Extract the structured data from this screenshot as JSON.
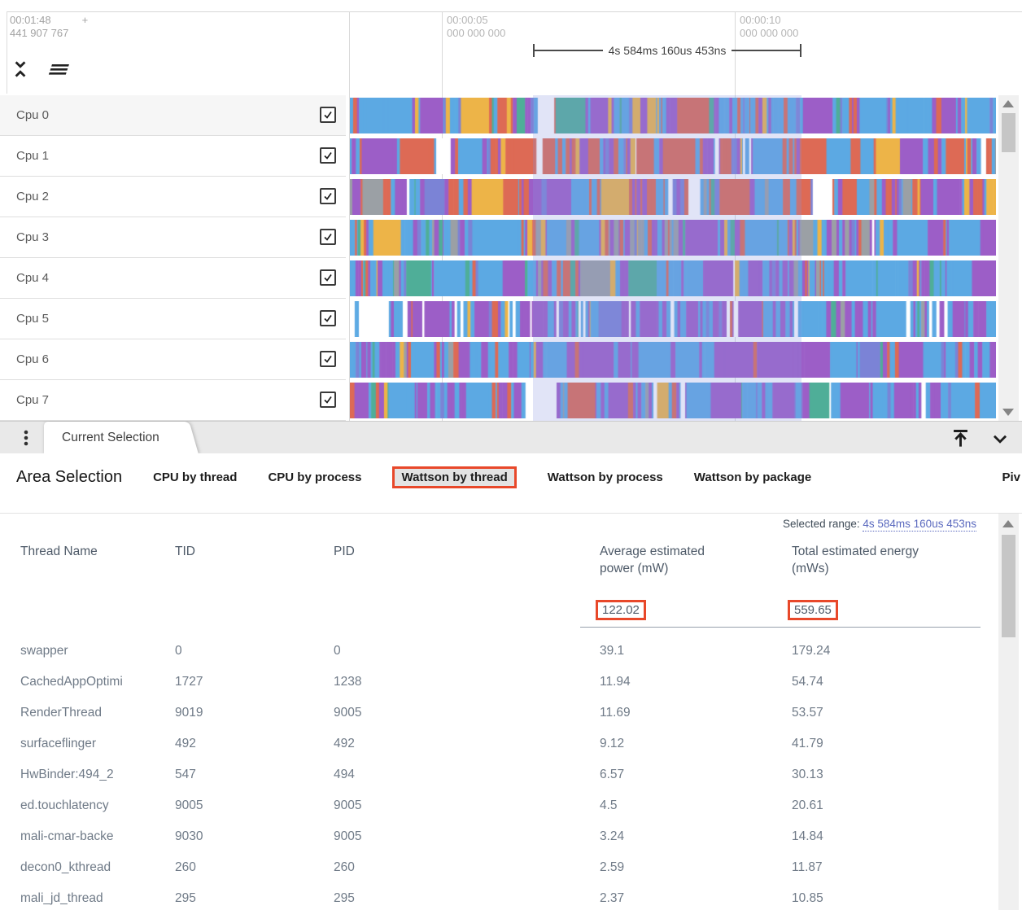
{
  "timeline": {
    "cursor": {
      "time": "00:01:48",
      "plus": "+",
      "nanos": "441 907 767"
    },
    "ticks": [
      {
        "time": "00:00:05",
        "nanos": "000 000 000"
      },
      {
        "time": "00:00:10",
        "nanos": "000 000 000"
      }
    ],
    "measurement": {
      "label": "4s 584ms 160us 453ns"
    },
    "tracks": [
      {
        "label": "Cpu 0",
        "checked": true,
        "seed": 101,
        "weights": [
          0.42,
          0.2,
          0.08,
          0.12,
          0.06,
          0.04,
          0.06,
          0.02
        ]
      },
      {
        "label": "Cpu 1",
        "checked": true,
        "seed": 202,
        "weights": [
          0.34,
          0.22,
          0.28,
          0.04,
          0.02,
          0.02,
          0.04,
          0.04
        ]
      },
      {
        "label": "Cpu 2",
        "checked": true,
        "seed": 303,
        "weights": [
          0.3,
          0.24,
          0.3,
          0.05,
          0.03,
          0.03,
          0.04,
          0.01
        ]
      },
      {
        "label": "Cpu 3",
        "checked": true,
        "seed": 404,
        "weights": [
          0.38,
          0.24,
          0.12,
          0.04,
          0.05,
          0.12,
          0.04,
          0.01
        ]
      },
      {
        "label": "Cpu 4",
        "checked": true,
        "seed": 505,
        "weights": [
          0.48,
          0.26,
          0.1,
          0.04,
          0.05,
          0.02,
          0.04,
          0.01
        ]
      },
      {
        "label": "Cpu 5",
        "checked": true,
        "seed": 606,
        "weights": [
          0.34,
          0.36,
          0.05,
          0.05,
          0.02,
          0.02,
          0.04,
          0.12
        ]
      },
      {
        "label": "Cpu 6",
        "checked": true,
        "seed": 707,
        "weights": [
          0.42,
          0.36,
          0.1,
          0.03,
          0.03,
          0.02,
          0.03,
          0.01
        ]
      },
      {
        "label": "Cpu 7",
        "checked": true,
        "seed": 808,
        "weights": [
          0.3,
          0.38,
          0.1,
          0.04,
          0.02,
          0.02,
          0.04,
          0.1
        ]
      }
    ]
  },
  "tabstrip": {
    "current_tab": "Current Selection"
  },
  "details": {
    "title": "Area Selection",
    "tabs": [
      {
        "label": "CPU by thread",
        "selected": false
      },
      {
        "label": "CPU by process",
        "selected": false
      },
      {
        "label": "Wattson by thread",
        "selected": true
      },
      {
        "label": "Wattson by process",
        "selected": false
      },
      {
        "label": "Wattson by package",
        "selected": false
      },
      {
        "label": "Piv",
        "selected": false
      }
    ],
    "selected_range": {
      "label": "Selected range:",
      "value": "4s 584ms 160us 453ns"
    },
    "table": {
      "columns": [
        "Thread Name",
        "TID",
        "PID",
        "Average estimated power (mW)",
        "Total estimated energy (mWs)"
      ],
      "column_power_line1": "Average estimated power (mW)",
      "column_energy_line1": "Total estimated energy (mWs)",
      "totals": {
        "power": "122.02",
        "energy": "559.65"
      },
      "rows": [
        {
          "thread": "swapper",
          "tid": "0",
          "pid": "0",
          "power": "39.1",
          "energy": "179.24"
        },
        {
          "thread": "CachedAppOptimi",
          "tid": "1727",
          "pid": "1238",
          "power": "11.94",
          "energy": "54.74"
        },
        {
          "thread": "RenderThread",
          "tid": "9019",
          "pid": "9005",
          "power": "11.69",
          "energy": "53.57"
        },
        {
          "thread": "surfaceflinger",
          "tid": "492",
          "pid": "492",
          "power": "9.12",
          "energy": "41.79"
        },
        {
          "thread": "HwBinder:494_2",
          "tid": "547",
          "pid": "494",
          "power": "6.57",
          "energy": "30.13"
        },
        {
          "thread": "ed.touchlatency",
          "tid": "9005",
          "pid": "9005",
          "power": "4.5",
          "energy": "20.61"
        },
        {
          "thread": "mali-cmar-backe",
          "tid": "9030",
          "pid": "9005",
          "power": "3.24",
          "energy": "14.84"
        },
        {
          "thread": "decon0_kthread",
          "tid": "260",
          "pid": "260",
          "power": "2.59",
          "energy": "11.87"
        },
        {
          "thread": "mali_jd_thread",
          "tid": "295",
          "pid": "295",
          "power": "2.37",
          "energy": "10.85"
        }
      ]
    }
  },
  "colors": {
    "accent_orange": "#e8482a",
    "link_blue": "#5b6abf",
    "selection_overlay": "rgba(136,148,222,0.25)",
    "track_palette": [
      "#5ca9e3",
      "#9c5ec7",
      "#dd6a55",
      "#edb448",
      "#4fae98",
      "#9ba0a5",
      "#7b83d6",
      "#ffffff"
    ]
  }
}
